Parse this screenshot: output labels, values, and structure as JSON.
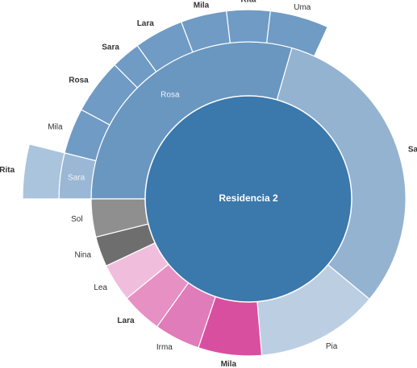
{
  "chart_data": {
    "type": "sunburst",
    "root": "Residencia 2",
    "root_color": "#3b78ab",
    "children": [
      {
        "name": "Rosa",
        "value": 29.4,
        "color": "#6a97c0",
        "bold": false,
        "children": [
          {
            "name": "Sara",
            "value": 3.9,
            "color": "#9ab8d5",
            "bold": false,
            "children": [
              {
                "name": "Rita",
                "value": 3.9,
                "color": "#a9c4dc",
                "bold": true
              }
            ]
          },
          {
            "name": "Mila",
            "value": 3.9,
            "color": "#6f9bc4",
            "bold": false
          },
          {
            "name": "Rosa",
            "value": 4.7,
            "color": "#6f9bc4",
            "bold": true
          },
          {
            "name": "Sara",
            "value": 2.5,
            "color": "#6f9bc4",
            "bold": true
          },
          {
            "name": "Lara",
            "value": 4.2,
            "color": "#6f9bc4",
            "bold": true
          },
          {
            "name": "Mila",
            "value": 3.9,
            "color": "#6f9bc4",
            "bold": true
          },
          {
            "name": "Rita",
            "value": 3.7,
            "color": "#6f9bc4",
            "bold": true
          },
          {
            "name": "Uma",
            "value": 5.0,
            "color": "#6f9bc4",
            "bold": false
          }
        ]
      },
      {
        "name": "Sara",
        "value": 31.5,
        "color": "#93b3d0",
        "bold": true
      },
      {
        "name": "Pia",
        "value": 12.6,
        "color": "#bccfe2",
        "bold": false
      },
      {
        "name": "Mila",
        "value": 6.5,
        "color": "#d94fa0",
        "bold": true
      },
      {
        "name": "Irma",
        "value": 4.7,
        "color": "#e07cb9",
        "bold": false
      },
      {
        "name": "Lara",
        "value": 4.2,
        "color": "#e690c4",
        "bold": true
      },
      {
        "name": "Lea",
        "value": 3.9,
        "color": "#f0bedc",
        "bold": false
      },
      {
        "name": "Nina",
        "value": 3.1,
        "color": "#6e6e6e",
        "bold": false
      },
      {
        "name": "Sol",
        "value": 3.9,
        "color": "#8f8f8f",
        "bold": false
      }
    ]
  }
}
